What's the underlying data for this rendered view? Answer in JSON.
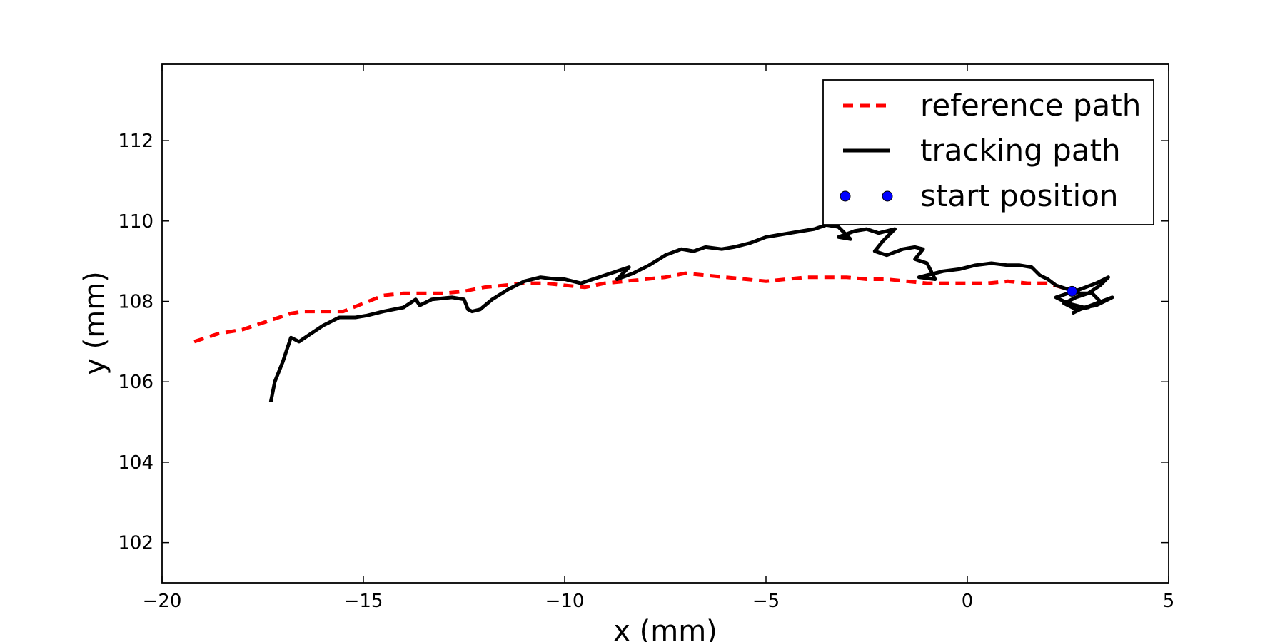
{
  "chart_data": {
    "type": "line",
    "title": "",
    "xlabel": "x (mm)",
    "ylabel": "y (mm)",
    "xlim": [
      -20,
      5
    ],
    "ylim": [
      101,
      113.9
    ],
    "xticks": [
      -20,
      -15,
      -10,
      -5,
      0,
      5
    ],
    "xtick_labels": [
      "−20",
      "−15",
      "−10",
      "−5",
      "0",
      "5"
    ],
    "yticks": [
      102,
      104,
      106,
      108,
      110,
      112
    ],
    "ytick_labels": [
      "102",
      "104",
      "106",
      "108",
      "110",
      "112"
    ],
    "grid": false,
    "legend_position": "top-right",
    "series": [
      {
        "name": "reference path",
        "style": "dashed",
        "color": "#ff0000",
        "x": [
          -19.2,
          -18.6,
          -18.0,
          -17.4,
          -16.8,
          -16.5,
          -16.0,
          -15.5,
          -15.0,
          -14.5,
          -14.0,
          -13.5,
          -13.0,
          -12.5,
          -12.0,
          -11.5,
          -11.0,
          -10.5,
          -10.0,
          -9.5,
          -9.0,
          -8.5,
          -8.0,
          -7.5,
          -7.0,
          -6.5,
          -6.0,
          -5.5,
          -5.0,
          -4.5,
          -4.0,
          -3.5,
          -3.0,
          -2.5,
          -2.0,
          -1.5,
          -1.0,
          -0.5,
          0.0,
          0.5,
          1.0,
          1.5,
          2.0,
          2.5
        ],
        "y": [
          107.0,
          107.2,
          107.3,
          107.5,
          107.7,
          107.75,
          107.75,
          107.75,
          107.95,
          108.15,
          108.2,
          108.2,
          108.2,
          108.25,
          108.35,
          108.4,
          108.45,
          108.45,
          108.4,
          108.35,
          108.45,
          108.5,
          108.55,
          108.6,
          108.7,
          108.65,
          108.6,
          108.55,
          108.5,
          108.55,
          108.6,
          108.6,
          108.6,
          108.55,
          108.55,
          108.5,
          108.45,
          108.45,
          108.45,
          108.45,
          108.5,
          108.45,
          108.45,
          108.3
        ]
      },
      {
        "name": "tracking path",
        "style": "solid",
        "color": "#000000",
        "x": [
          -17.3,
          -17.2,
          -17.0,
          -16.9,
          -16.8,
          -16.6,
          -16.3,
          -16.0,
          -15.6,
          -15.2,
          -14.9,
          -14.5,
          -14.0,
          -13.7,
          -13.6,
          -13.3,
          -12.8,
          -12.5,
          -12.4,
          -12.3,
          -12.1,
          -11.8,
          -11.4,
          -11.0,
          -10.6,
          -10.2,
          -10.0,
          -9.6,
          -9.3,
          -9.0,
          -8.7,
          -8.4,
          -8.7,
          -8.3,
          -7.9,
          -7.5,
          -7.1,
          -6.8,
          -6.5,
          -6.1,
          -5.8,
          -5.4,
          -5.0,
          -4.7,
          -4.4,
          -4.1,
          -3.8,
          -3.5,
          -3.2,
          -2.9,
          -3.2,
          -2.8,
          -2.5,
          -2.2,
          -1.8,
          -2.1,
          -2.3,
          -2.0,
          -1.6,
          -1.3,
          -1.1,
          -1.3,
          -1.0,
          -0.8,
          -1.2,
          -0.6,
          -0.2,
          0.2,
          0.6,
          1.0,
          1.3,
          1.6,
          1.8,
          2.0,
          2.2,
          2.5,
          2.8,
          3.1,
          3.3,
          3.0,
          2.7,
          2.4,
          2.7,
          3.0,
          3.3,
          3.5,
          3.2,
          2.8,
          2.5,
          2.2,
          2.5,
          2.9,
          3.2,
          3.5,
          3.6,
          3.2,
          2.8,
          2.6
        ],
        "y": [
          105.5,
          106.0,
          106.5,
          106.8,
          107.1,
          107.0,
          107.2,
          107.4,
          107.6,
          107.6,
          107.65,
          107.75,
          107.85,
          108.05,
          107.9,
          108.05,
          108.1,
          108.05,
          107.8,
          107.75,
          107.8,
          108.05,
          108.3,
          108.5,
          108.6,
          108.55,
          108.55,
          108.45,
          108.55,
          108.65,
          108.75,
          108.85,
          108.55,
          108.7,
          108.9,
          109.15,
          109.3,
          109.25,
          109.35,
          109.3,
          109.35,
          109.45,
          109.6,
          109.65,
          109.7,
          109.75,
          109.8,
          109.9,
          109.85,
          109.55,
          109.6,
          109.75,
          109.8,
          109.7,
          109.8,
          109.5,
          109.25,
          109.15,
          109.3,
          109.35,
          109.3,
          109.05,
          108.95,
          108.55,
          108.6,
          108.75,
          108.8,
          108.9,
          108.95,
          108.9,
          108.9,
          108.85,
          108.65,
          108.55,
          108.4,
          108.3,
          108.2,
          108.2,
          108.0,
          107.85,
          107.8,
          107.95,
          108.1,
          108.2,
          108.4,
          108.6,
          108.45,
          108.3,
          108.2,
          108.1,
          107.95,
          107.85,
          107.9,
          108.05,
          108.1,
          107.95,
          107.8,
          107.7
        ]
      }
    ],
    "points": [
      {
        "name": "start position",
        "x": 2.6,
        "y": 108.25,
        "color": "#0000ff"
      }
    ]
  }
}
